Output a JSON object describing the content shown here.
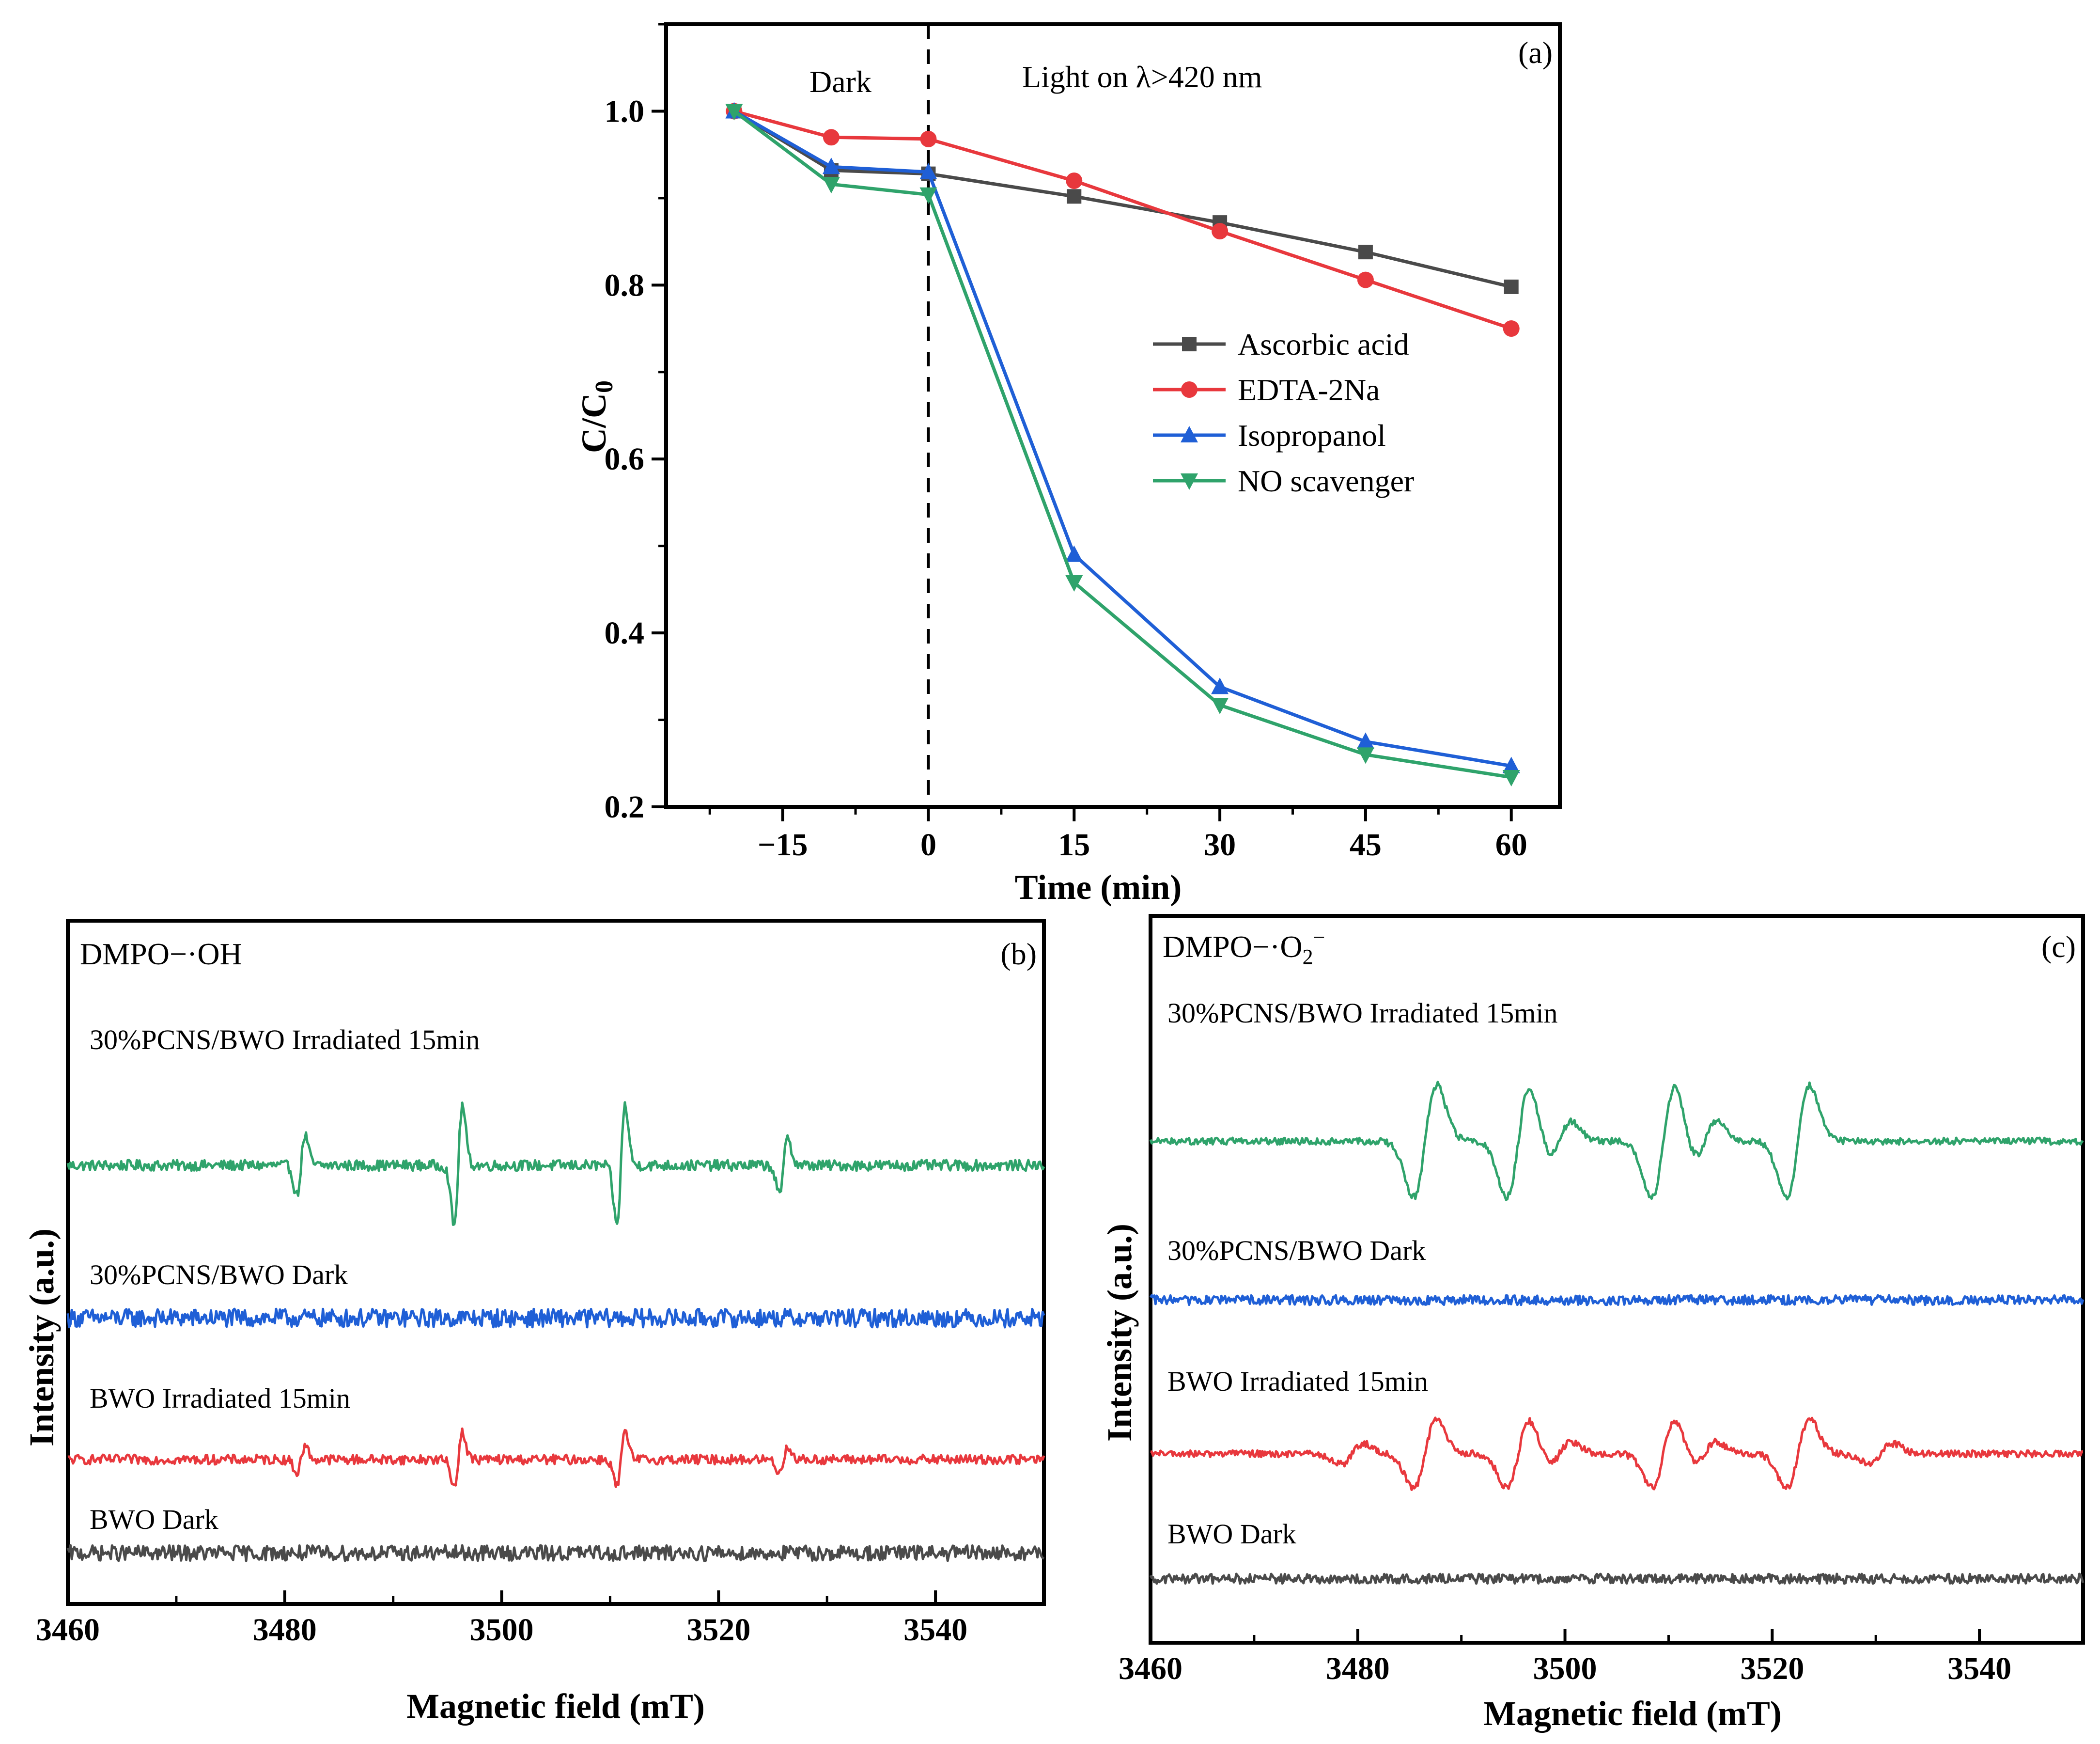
{
  "chart_data": [
    {
      "type": "line",
      "panel": "(a)",
      "xlabel": "Time (min)",
      "ylabel": "C/C0",
      "ylabel_main": "C/C",
      "ylabel_sub": "0",
      "xlim": [
        -27,
        65
      ],
      "ylim": [
        0.2,
        1.1
      ],
      "xticks": [
        -15,
        0,
        15,
        30,
        45,
        60
      ],
      "xtick_labels": [
        "−15",
        "0",
        "15",
        "30",
        "45",
        "60"
      ],
      "yticks": [
        0.2,
        0.4,
        0.6,
        0.8,
        1.0
      ],
      "ytick_labels": [
        "0.2",
        "0.4",
        "0.6",
        "0.8",
        "1.0"
      ],
      "annotations": {
        "dark": "Dark",
        "light": "Light on  λ>420 nm"
      },
      "divider_x": 0,
      "x": [
        -20,
        -10,
        0,
        15,
        30,
        45,
        60
      ],
      "series": [
        {
          "name": "Ascorbic acid",
          "color": "#4a4a4a",
          "marker": "square",
          "values": [
            1.0,
            0.932,
            0.928,
            0.902,
            0.872,
            0.838,
            0.798
          ]
        },
        {
          "name": "EDTA-2Na",
          "color": "#e8383d",
          "marker": "circle",
          "values": [
            1.0,
            0.97,
            0.968,
            0.92,
            0.862,
            0.806,
            0.75
          ]
        },
        {
          "name": "Isopropanol",
          "color": "#1f5fd6",
          "marker": "triangle-up",
          "values": [
            1.0,
            0.936,
            0.93,
            0.49,
            0.338,
            0.275,
            0.247
          ]
        },
        {
          "name": "NO scavenger",
          "color": "#2fa36b",
          "marker": "triangle-down",
          "values": [
            1.0,
            0.916,
            0.904,
            0.458,
            0.317,
            0.26,
            0.234
          ]
        }
      ]
    },
    {
      "type": "line",
      "panel": "(b)",
      "title": "DMPO−·OH",
      "xlabel": "Magnetic field (mT)",
      "ylabel": "Intensity (a.u.)",
      "xlim": [
        3460,
        3550
      ],
      "xticks": [
        3460,
        3480,
        3500,
        3520,
        3540
      ],
      "xtick_labels": [
        "3460",
        "3480",
        "3500",
        "3520",
        "3540"
      ],
      "spectrum_type": "quartet 1:2:2:1",
      "series": [
        {
          "name": "30%PCNS/BWO Irradiated 15min",
          "color": "#2fa36b",
          "peak_centers_mT": [
            3481.5,
            3496.0,
            3511.0,
            3526.0
          ],
          "relative_amplitudes": [
            1,
            2,
            2,
            1
          ]
        },
        {
          "name": "30%PCNS/BWO Dark",
          "color": "#1f5fd6",
          "peak_centers_mT": []
        },
        {
          "name": "BWO Irradiated 15min",
          "color": "#e8383d",
          "peak_centers_mT": [
            3481.5,
            3496.0,
            3511.0,
            3526.0
          ],
          "relative_amplitudes": [
            1,
            2,
            2,
            1
          ]
        },
        {
          "name": "BWO Dark",
          "color": "#4a4a4a",
          "peak_centers_mT": []
        }
      ]
    },
    {
      "type": "line",
      "panel": "(c)",
      "title": "DMPO−·O2−",
      "title_main": "DMPO−·O",
      "title_sub": "2",
      "title_sup": "−",
      "xlabel": "Magnetic field (mT)",
      "ylabel": "Intensity (a.u.)",
      "xlim": [
        3460,
        3550
      ],
      "xticks": [
        3460,
        3480,
        3500,
        3520,
        3540
      ],
      "xtick_labels": [
        "3460",
        "3480",
        "3500",
        "3520",
        "3540"
      ],
      "spectrum_type": "sextet",
      "series": [
        {
          "name": "30%PCNS/BWO Irradiated 15min",
          "color": "#2fa36b",
          "peak_centers_mT": [
            3486.5,
            3495.5,
            3499.5,
            3509.5,
            3513.5,
            3522.5
          ]
        },
        {
          "name": "30%PCNS/BWO Dark",
          "color": "#1f5fd6",
          "peak_centers_mT": []
        },
        {
          "name": "BWO Irradiated 15min",
          "color": "#e8383d",
          "peak_centers_mT": [
            3479.5,
            3486.5,
            3495.5,
            3499.5,
            3509.5,
            3513.5,
            3522.5,
            3530.5
          ]
        },
        {
          "name": "BWO Dark",
          "color": "#4a4a4a",
          "peak_centers_mT": []
        }
      ]
    }
  ]
}
